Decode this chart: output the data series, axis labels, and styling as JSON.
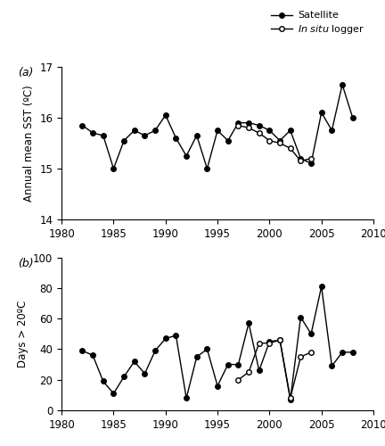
{
  "sat_sst_years": [
    1982,
    1983,
    1984,
    1985,
    1986,
    1987,
    1988,
    1989,
    1990,
    1991,
    1992,
    1993,
    1994,
    1995,
    1996,
    1997,
    1998,
    1999,
    2000,
    2001,
    2002,
    2003,
    2004,
    2005,
    2006,
    2007,
    2008
  ],
  "sat_sst_vals": [
    15.85,
    15.7,
    15.65,
    15.0,
    15.55,
    15.75,
    15.65,
    15.75,
    16.05,
    15.6,
    15.25,
    15.65,
    15.0,
    15.75,
    15.55,
    15.9,
    15.9,
    15.85,
    15.75,
    15.55,
    15.75,
    15.2,
    15.1,
    16.1,
    15.75,
    16.65,
    16.0
  ],
  "insitu_sst_years": [
    1997,
    1998,
    1999,
    2000,
    2001,
    2002,
    2003,
    2004
  ],
  "insitu_sst_vals": [
    15.85,
    15.8,
    15.7,
    15.55,
    15.5,
    15.4,
    15.15,
    15.2
  ],
  "sat_days_years": [
    1982,
    1983,
    1984,
    1985,
    1986,
    1987,
    1988,
    1989,
    1990,
    1991,
    1992,
    1993,
    1994,
    1995,
    1996,
    1997,
    1998,
    1999,
    2000,
    2001,
    2002,
    2003,
    2004,
    2005,
    2006,
    2007,
    2008
  ],
  "sat_days_vals": [
    39,
    36,
    19,
    11,
    22,
    32,
    24,
    39,
    47,
    49,
    8,
    35,
    40,
    16,
    30,
    30,
    57,
    26,
    45,
    46,
    7,
    61,
    50,
    81,
    29,
    38,
    38
  ],
  "insitu_days_years": [
    1997,
    1998,
    1999,
    2000,
    2001,
    2002,
    2003,
    2004
  ],
  "insitu_days_vals": [
    20,
    25,
    44,
    44,
    46,
    8,
    35,
    38
  ],
  "xlim": [
    1980,
    2010
  ],
  "xticks": [
    1980,
    1985,
    1990,
    1995,
    2000,
    2005,
    2010
  ],
  "sst_ylim": [
    14,
    17
  ],
  "sst_yticks": [
    14,
    15,
    16,
    17
  ],
  "days_ylim": [
    0,
    100
  ],
  "days_yticks": [
    0,
    20,
    40,
    60,
    80,
    100
  ],
  "label_a": "(a)",
  "label_b": "(b)",
  "ylabel_a": "Annual mean SST (ºC)",
  "ylabel_b": "Days > 20ºC",
  "legend_satellite": "Satellite",
  "legend_insitu": "In situ logger",
  "sat_color": "black",
  "insitu_color": "black",
  "sat_marker": "o",
  "insitu_marker": "o",
  "sat_markersize": 4,
  "insitu_markersize": 4,
  "linewidth": 1.0,
  "background_color": "white"
}
